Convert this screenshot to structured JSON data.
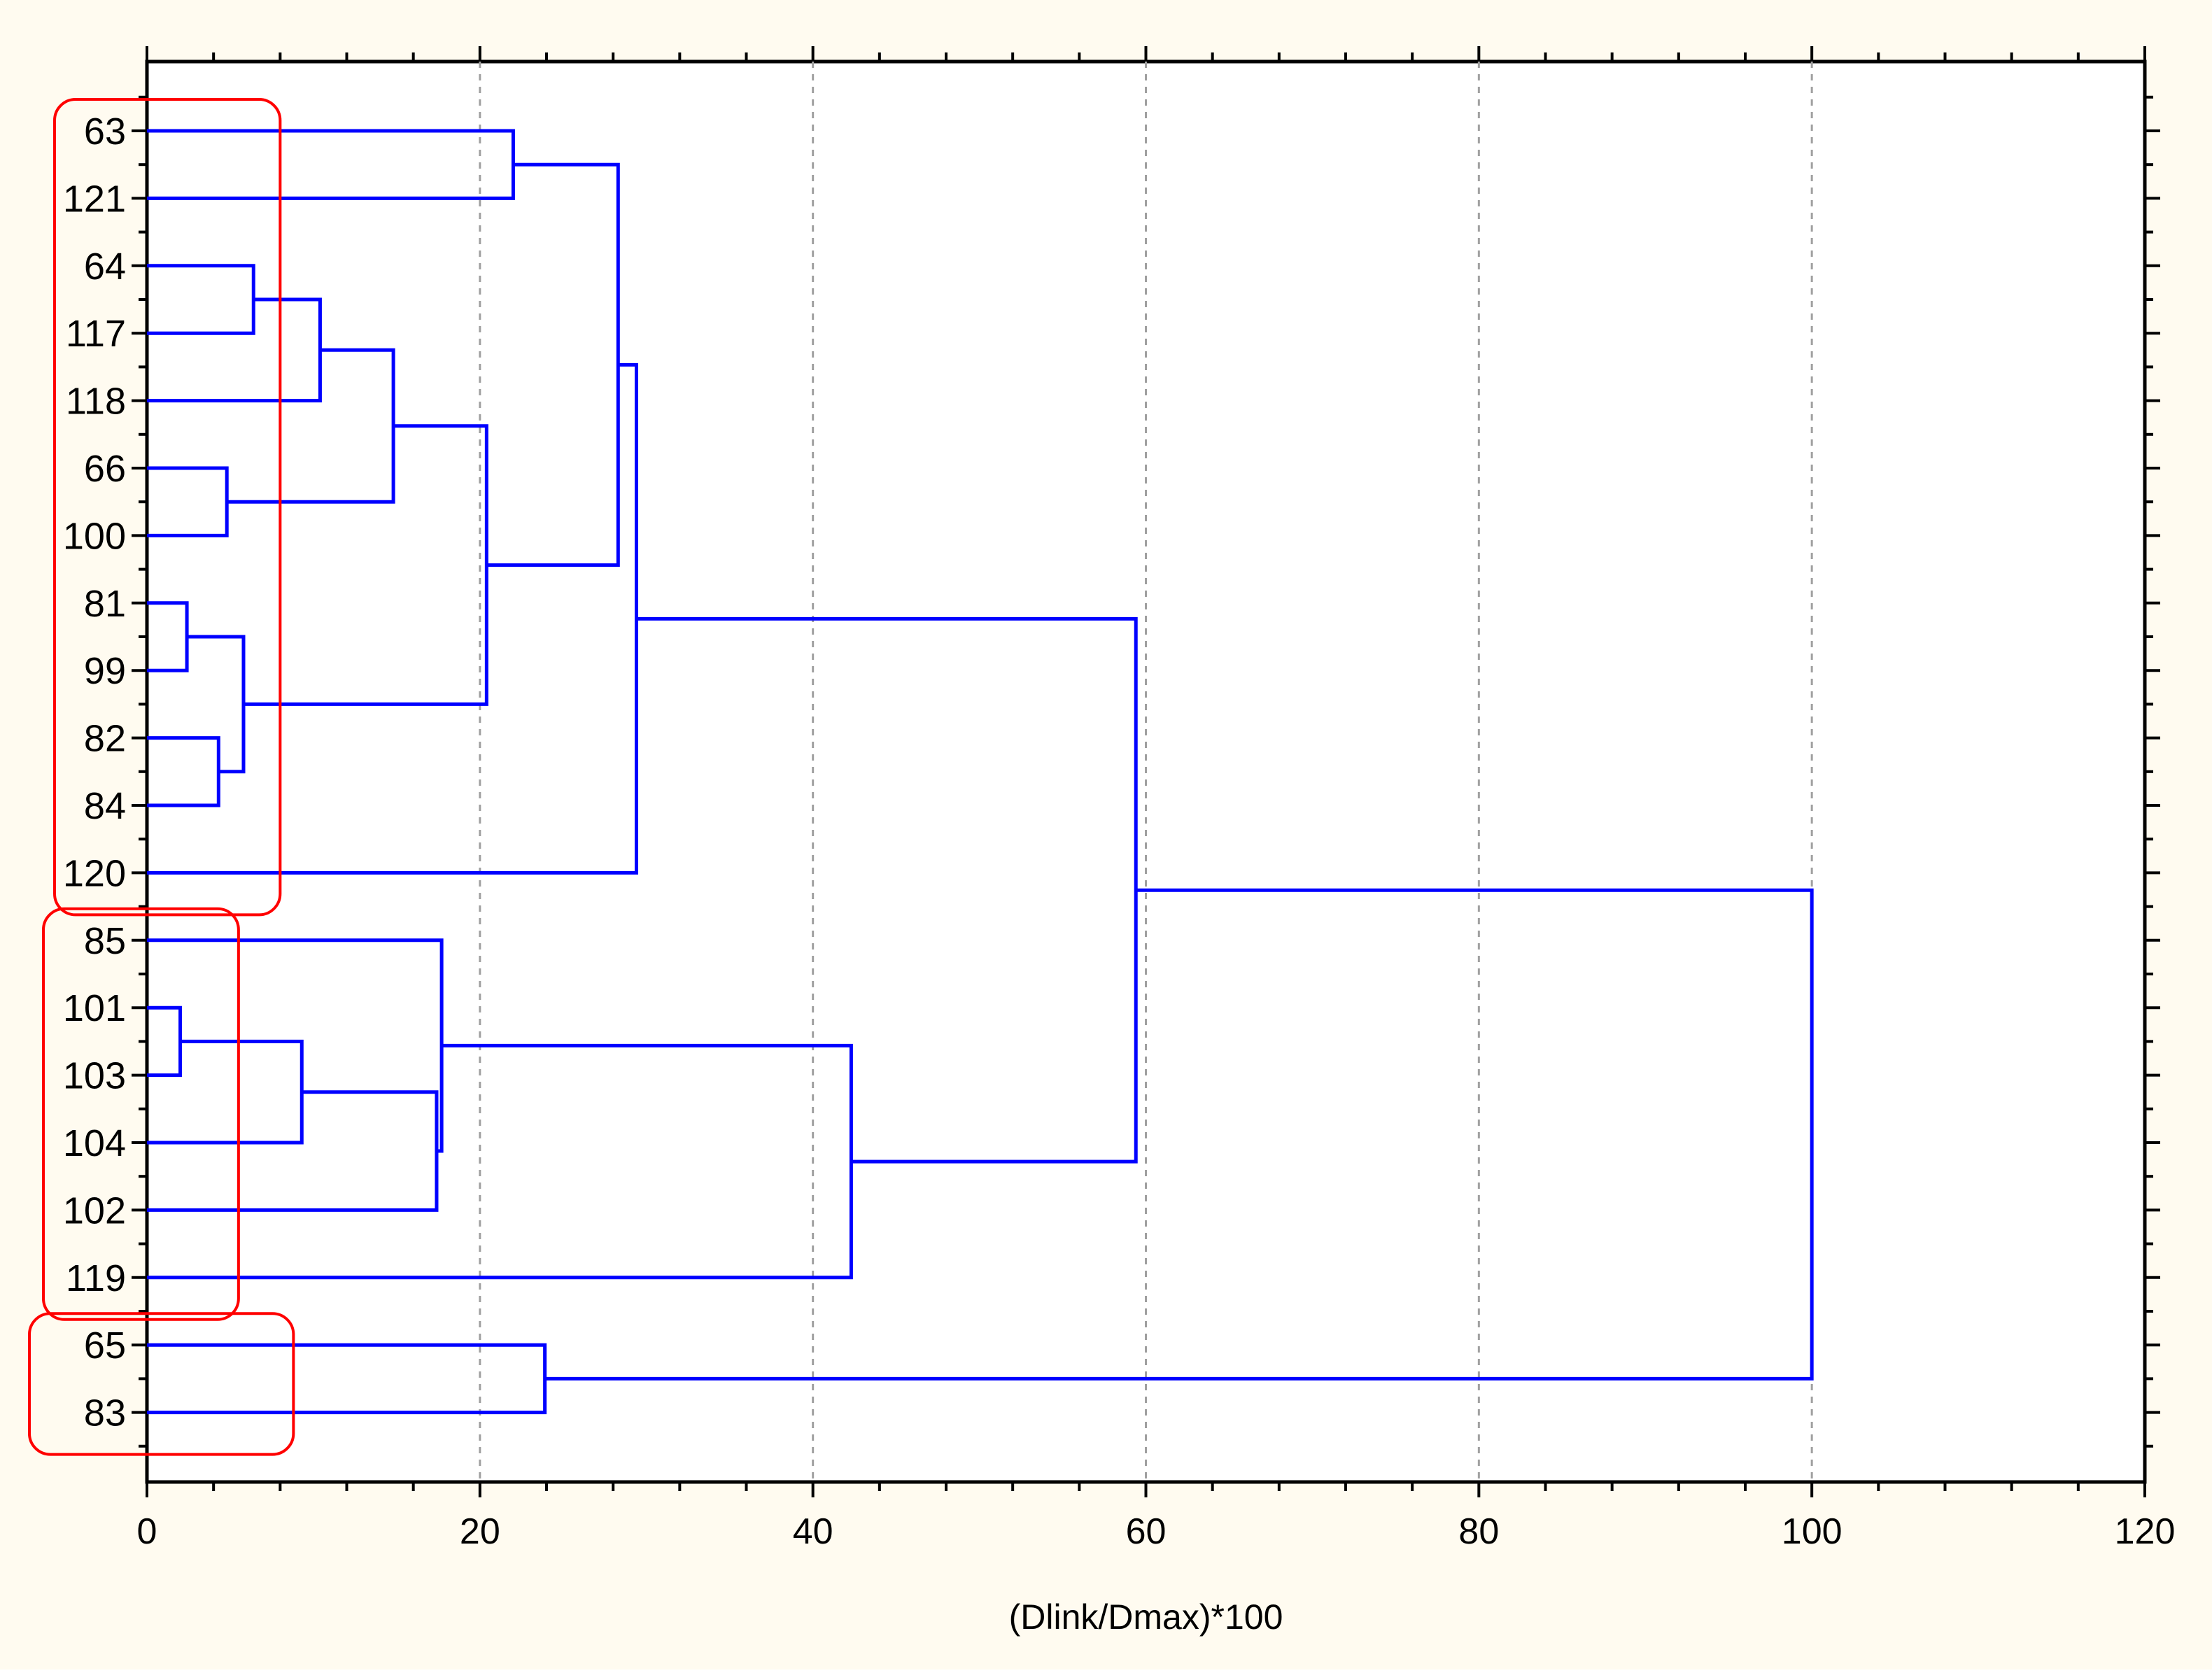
{
  "chart_data": {
    "type": "dendrogram",
    "orientation": "horizontal",
    "xlabel": "(Dlink/Dmax)*100",
    "xlim": [
      0,
      120
    ],
    "xticks": [
      0,
      20,
      40,
      60,
      80,
      100,
      120
    ],
    "grid": "vertical dashed lines at 20, 40, 60, 80, 100",
    "leaves": [
      "63",
      "121",
      "64",
      "117",
      "118",
      "66",
      "100",
      "81",
      "99",
      "82",
      "84",
      "120",
      "85",
      "101",
      "103",
      "104",
      "102",
      "119",
      "65",
      "83"
    ],
    "merges": [
      {
        "id": "m1",
        "left": "101",
        "right": "103",
        "height": 2.0
      },
      {
        "id": "m2",
        "left": "81",
        "right": "99",
        "height": 2.4
      },
      {
        "id": "m3",
        "left": "82",
        "right": "84",
        "height": 4.3
      },
      {
        "id": "m4",
        "left": "66",
        "right": "100",
        "height": 4.8
      },
      {
        "id": "m5",
        "left": "m2",
        "right": "m3",
        "height": 5.8
      },
      {
        "id": "m6",
        "left": "64",
        "right": "117",
        "height": 6.4
      },
      {
        "id": "m7",
        "left": "m1",
        "right": "104",
        "height": 9.3
      },
      {
        "id": "m8",
        "left": "m6",
        "right": "118",
        "height": 10.4
      },
      {
        "id": "m9",
        "left": "m8",
        "right": "m4",
        "height": 14.8
      },
      {
        "id": "m10",
        "left": "m7",
        "right": "102",
        "height": 17.4
      },
      {
        "id": "m11",
        "left": "85",
        "right": "m10",
        "height": 17.7
      },
      {
        "id": "m12",
        "left": "m9",
        "right": "m5",
        "height": 20.4
      },
      {
        "id": "m13",
        "left": "63",
        "right": "121",
        "height": 22.0
      },
      {
        "id": "m14",
        "left": "65",
        "right": "83",
        "height": 23.9
      },
      {
        "id": "m15",
        "left": "m13",
        "right": "m12",
        "height": 28.3
      },
      {
        "id": "m16",
        "left": "m15",
        "right": "120",
        "height": 29.4
      },
      {
        "id": "m17",
        "left": "m11",
        "right": "119",
        "height": 42.3
      },
      {
        "id": "m18",
        "left": "m16",
        "right": "m17",
        "height": 59.4
      },
      {
        "id": "m19",
        "left": "m18",
        "right": "m14",
        "height": 100.0
      }
    ],
    "highlight_groups": [
      {
        "name": "group-1",
        "leaves": [
          "63",
          "121",
          "64",
          "117",
          "118",
          "66",
          "100",
          "81",
          "99",
          "82",
          "84",
          "120"
        ]
      },
      {
        "name": "group-2",
        "leaves": [
          "85",
          "101",
          "103",
          "104",
          "102",
          "119"
        ]
      },
      {
        "name": "group-3",
        "leaves": [
          "65",
          "83"
        ]
      }
    ],
    "colors": {
      "background": "#FFFBF0",
      "plot_background": "#FFFFFF",
      "links": "#0000FF",
      "highlight_boxes": "#FF0000",
      "grid": "#A0A0A0",
      "axis": "#000000"
    }
  }
}
